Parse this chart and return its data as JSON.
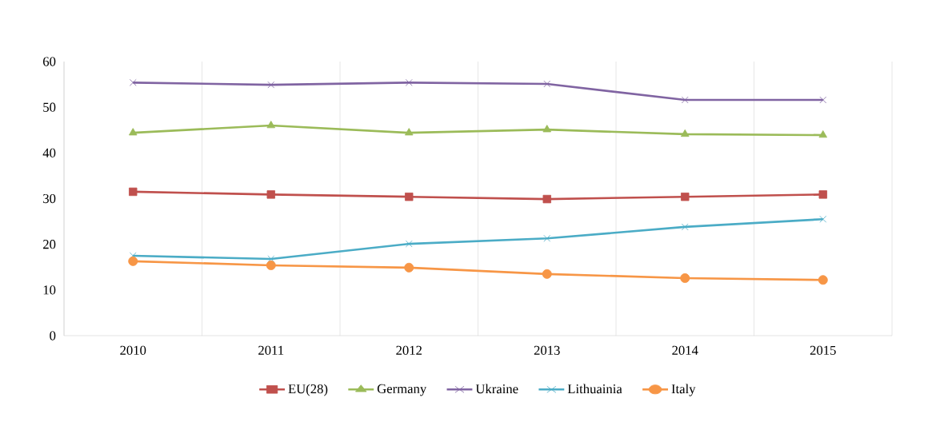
{
  "chart_data": {
    "type": "line",
    "categories": [
      "2010",
      "2011",
      "2012",
      "2013",
      "2014",
      "2015"
    ],
    "series": [
      {
        "name": "EU(28)",
        "color": "#c0504d",
        "marker": "square",
        "values": [
          31.5,
          30.9,
          30.4,
          29.9,
          30.4,
          30.9
        ]
      },
      {
        "name": "Germany",
        "color": "#9bbb59",
        "marker": "triangle",
        "values": [
          44.4,
          46.0,
          44.4,
          45.1,
          44.1,
          43.9
        ]
      },
      {
        "name": "Ukraine",
        "color": "#8064a2",
        "marker": "cross",
        "values": [
          55.4,
          54.9,
          55.4,
          55.1,
          51.6,
          51.6
        ]
      },
      {
        "name": "Lithuainia",
        "color": "#4bacc6",
        "marker": "cross",
        "values": [
          17.5,
          16.8,
          20.1,
          21.3,
          23.8,
          25.5
        ]
      },
      {
        "name": "Italy",
        "color": "#f79646",
        "marker": "circle",
        "values": [
          16.3,
          15.4,
          14.9,
          13.5,
          12.6,
          12.2
        ]
      }
    ],
    "ylim": [
      0,
      60
    ],
    "yticks": [
      0,
      10,
      20,
      30,
      40,
      50,
      60
    ],
    "grid": "x",
    "legend": "bottom",
    "line_style": "solid"
  }
}
